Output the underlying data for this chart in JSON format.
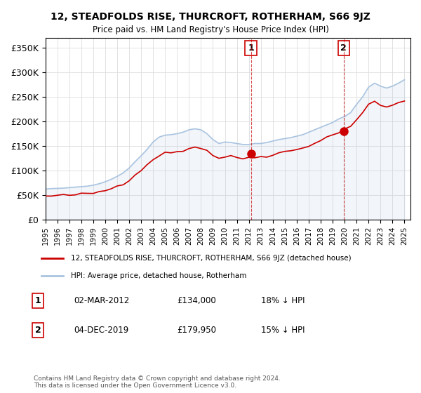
{
  "title": "12, STEADFOLDS RISE, THURCROFT, ROTHERHAM, S66 9JZ",
  "subtitle": "Price paid vs. HM Land Registry's House Price Index (HPI)",
  "ylabel_ticks": [
    "£0",
    "£50K",
    "£100K",
    "£150K",
    "£200K",
    "£250K",
    "£300K",
    "£350K"
  ],
  "ytick_values": [
    0,
    50000,
    100000,
    150000,
    200000,
    250000,
    300000,
    350000
  ],
  "ylim": [
    0,
    370000
  ],
  "xlim_start": 1995.0,
  "xlim_end": 2025.5,
  "legend_line1": "12, STEADFOLDS RISE, THURCROFT, ROTHERHAM, S66 9JZ (detached house)",
  "legend_line2": "HPI: Average price, detached house, Rotherham",
  "sale1_label": "1",
  "sale1_date": "02-MAR-2012",
  "sale1_price": "£134,000",
  "sale1_pct": "18% ↓ HPI",
  "sale2_label": "2",
  "sale2_date": "04-DEC-2019",
  "sale2_price": "£179,950",
  "sale2_pct": "15% ↓ HPI",
  "footer": "Contains HM Land Registry data © Crown copyright and database right 2024.\nThis data is licensed under the Open Government Licence v3.0.",
  "sale1_year": 2012.17,
  "sale1_value": 134000,
  "sale2_year": 2019.92,
  "sale2_value": 179950,
  "red_color": "#cc0000",
  "blue_color": "#aac4e0",
  "dashed_red_color": "#cc0000",
  "marker1_year": 2012.17,
  "marker1_val": 134000,
  "marker2_year": 2019.92,
  "marker2_val": 179950,
  "annotation1_year": 2012.17,
  "annotation1_val": 370000,
  "annotation2_year": 2019.92,
  "annotation2_val": 370000
}
